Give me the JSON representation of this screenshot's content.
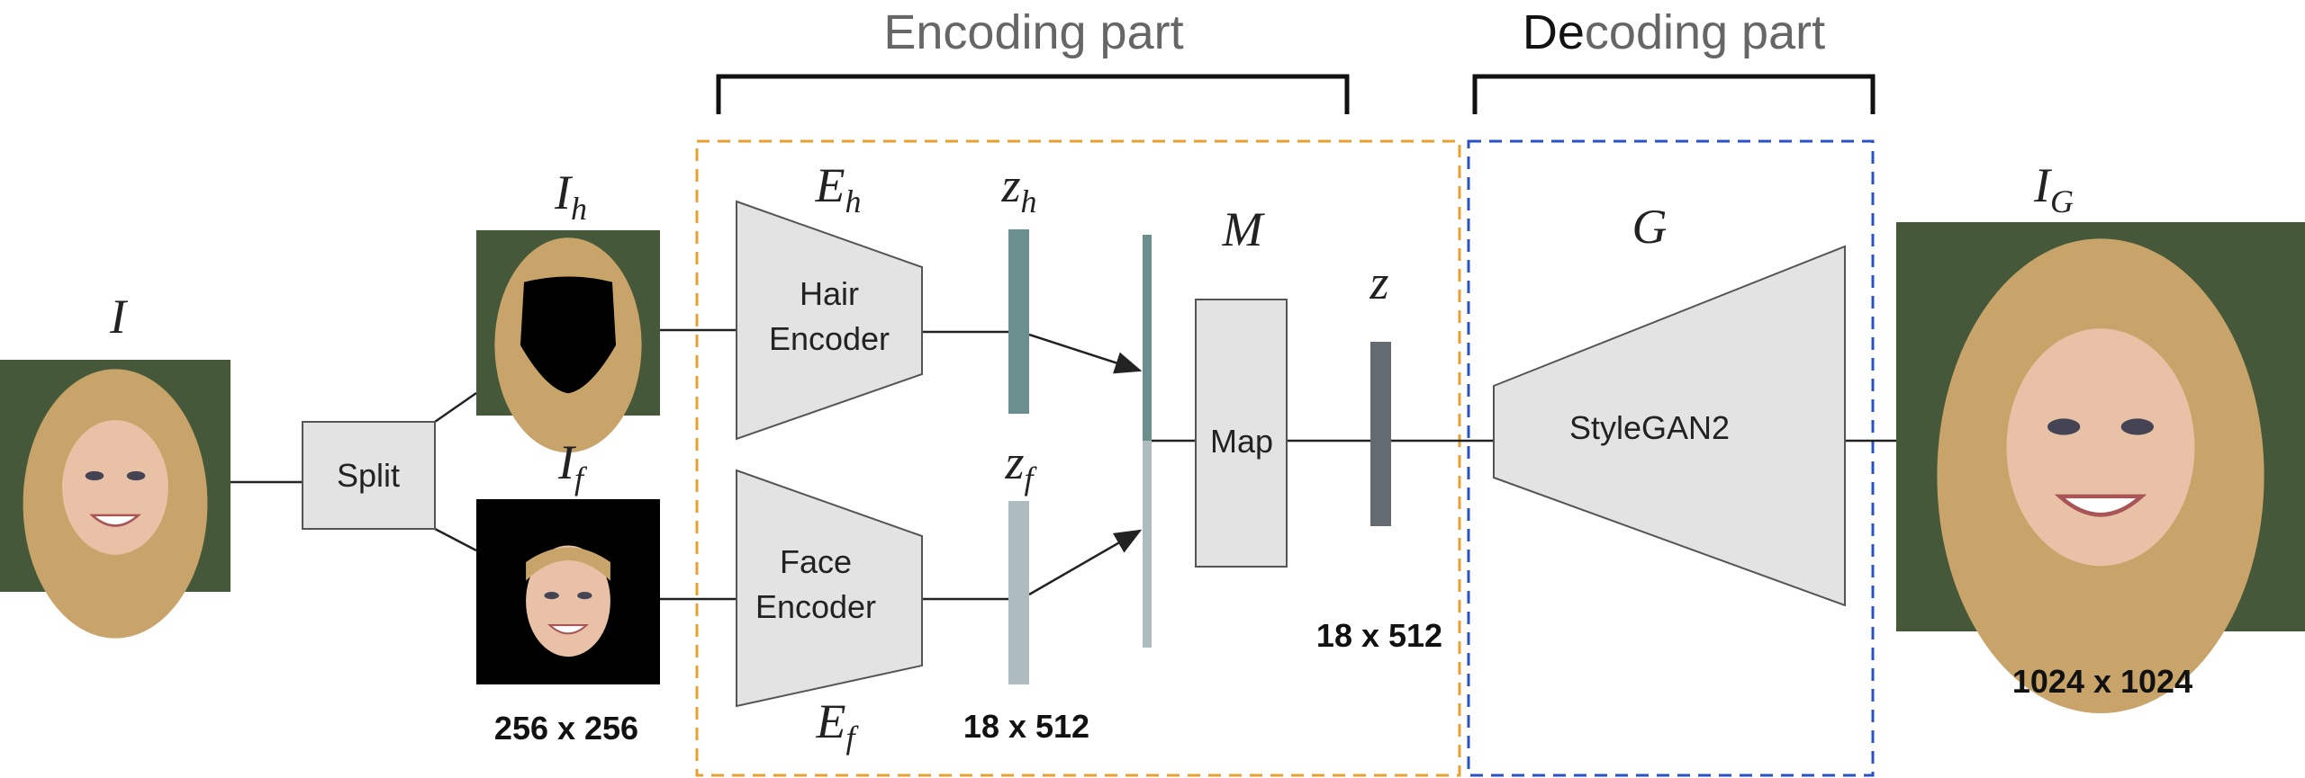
{
  "header": {
    "encoding": "Encoding part",
    "decoding": {
      "dark": "De",
      "rest": "coding part"
    }
  },
  "symbols": {
    "input": {
      "base": "I"
    },
    "hair_image": {
      "base": "I",
      "sub": "h"
    },
    "face_image": {
      "base": "I",
      "sub": "f"
    },
    "hair_encoder": {
      "base": "E",
      "sub": "h"
    },
    "face_encoder": {
      "base": "E",
      "sub": "f"
    },
    "hair_latent": {
      "base": "z",
      "sub": "h"
    },
    "face_latent": {
      "base": "z",
      "sub": "f"
    },
    "mapper": {
      "base": "M"
    },
    "latent": {
      "base": "z"
    },
    "generator": {
      "base": "G"
    },
    "output": {
      "base": "I",
      "sub": "G"
    }
  },
  "blocks": {
    "split": "Split",
    "hair_encoder": [
      "Hair",
      "Encoder"
    ],
    "face_encoder": [
      "Face",
      "Encoder"
    ],
    "map": "Map",
    "generator": "StyleGAN2"
  },
  "sizes": {
    "crop": "256 x 256",
    "split_latent": "18 x 512",
    "latent": "18 x 512",
    "output": "1024 x 1024"
  }
}
